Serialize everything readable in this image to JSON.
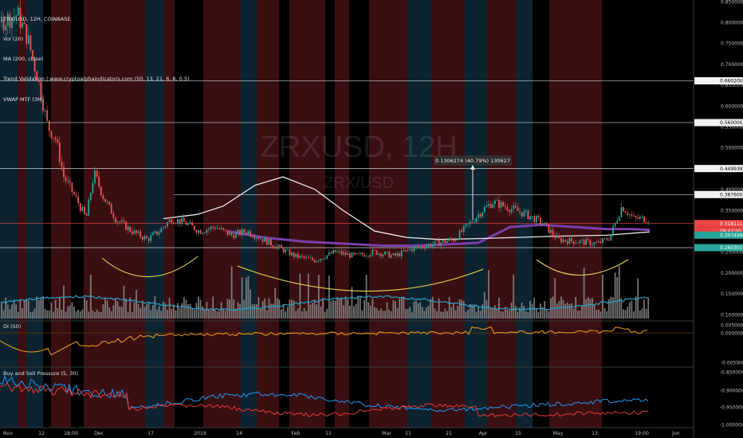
{
  "header": {
    "symbol_line": "ZRX/USD, 12H, COINBASE",
    "indicators": [
      "Vol (20)",
      "MA (200, close)",
      "Trend Validation | www.cryptoalphaindicators.com (50, 13, 21, 6, 6, 0.5)",
      "VWAP MTF (3M)"
    ]
  },
  "watermark": {
    "big": "ZRXUSD, 12H",
    "small": "ZRX/USD"
  },
  "panes": {
    "di_label": "DI (50)",
    "bsp_label": "Buy and Sell Pressure (5, 30)"
  },
  "colors": {
    "background": "#000000",
    "band_red": "#3a0f12",
    "band_blue": "#0d2430",
    "candle_up": "#26a69a",
    "candle_down": "#ef5350",
    "ma200": "#e6e6e6",
    "vwap": "#7b3ea8",
    "volume": "#8a8a8a",
    "volume_ma": "#2aa1c7",
    "arcs": "#e8d44d",
    "price_label_red": "#ef4444",
    "price_label_green": "#26a69a",
    "price_label_white": "#f2f2f2",
    "di_line": "#f0a020",
    "bsp_blue": "#2196f3",
    "bsp_red": "#e53935"
  },
  "main_axis_ticks": [
    "0.8500000",
    "0.8000000",
    "0.7500000",
    "0.7000000",
    "0.6500000",
    "0.6000000",
    "0.5500000",
    "0.5000000",
    "0.4500000",
    "0.4000000",
    "0.3500000",
    "0.3000000",
    "0.2500000",
    "0.2000000",
    "0.1500000",
    "0.1000000"
  ],
  "price_labels": [
    {
      "text": "0.6602000",
      "style": "white"
    },
    {
      "text": "0.5600000",
      "style": "white"
    },
    {
      "text": "0.4499380",
      "style": "white"
    },
    {
      "text": "0.3876000",
      "style": "white"
    },
    {
      "text": "0.3181110",
      "style": "red"
    },
    {
      "text": "09:42:05",
      "style": "red"
    },
    {
      "text": "0.3074990",
      "style": "green"
    },
    {
      "text": "0.2603018",
      "style": "green"
    }
  ],
  "measure_label": "0.1306274 (40.79%) 130627",
  "di_axis_ticks": [
    "0.005000",
    "0.000000",
    "-0.005000"
  ],
  "bsp_axis_ticks": [
    "-0.850000",
    "-0.900000",
    "-0.950000",
    "-1.000000"
  ],
  "x_axis_labels": [
    "Nov",
    "12",
    "18:00",
    "Dec",
    "17",
    "2019",
    "14",
    "Feb",
    "11",
    "Mar",
    "11",
    "21",
    "Apr",
    "15",
    "May",
    "13",
    "19:00",
    "Jun"
  ],
  "chart_data": {
    "type": "line",
    "title": "ZRX/USD, 12H, COINBASE",
    "ylim": [
      0.1,
      0.85
    ],
    "horizontal_levels": [
      0.6602,
      0.56,
      0.449938,
      0.3876,
      0.318111,
      0.307499,
      0.2603018
    ],
    "price": {
      "name": "ZRX/USD close (approx.)",
      "x": [
        "Nov",
        "12",
        "18:00",
        "Dec",
        "17",
        "2019",
        "14",
        "Feb",
        "11",
        "Mar",
        "11",
        "21",
        "Apr",
        "15",
        "May",
        "13",
        "19:00"
      ],
      "values": [
        0.8,
        0.7,
        0.4,
        0.43,
        0.33,
        0.35,
        0.3,
        0.25,
        0.27,
        0.27,
        0.28,
        0.3,
        0.36,
        0.34,
        0.28,
        0.34,
        0.32
      ]
    },
    "measure": {
      "from": 0.3205,
      "to": 0.4511,
      "change": 0.1306274,
      "percent": 40.79
    },
    "di_range": [
      -0.0065,
      0.0085
    ],
    "bsp_range": [
      -1.005,
      -0.845
    ]
  }
}
